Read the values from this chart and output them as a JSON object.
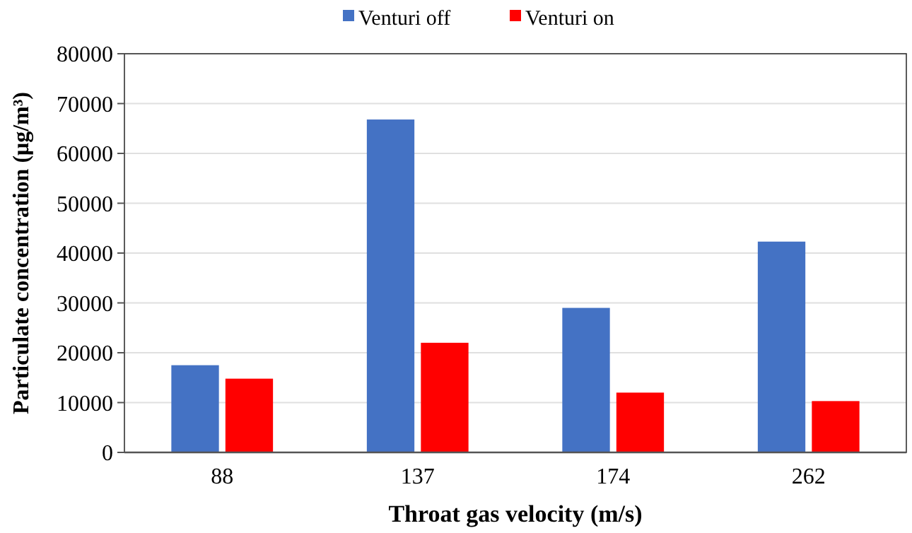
{
  "chart_data": {
    "type": "bar",
    "xlabel": "Throat gas velocity (m/s)",
    "ylabel": "Particulate concentration (μg/m³)",
    "categories": [
      "88",
      "137",
      "174",
      "262"
    ],
    "series": [
      {
        "name": "Venturi off",
        "color": "#4472c4",
        "values": [
          17500,
          66800,
          29000,
          42300
        ]
      },
      {
        "name": "Venturi on",
        "color": "#ff0000",
        "values": [
          14800,
          22000,
          12000,
          10300
        ]
      }
    ],
    "ylim": [
      0,
      80000
    ],
    "yticks": [
      0,
      10000,
      20000,
      30000,
      40000,
      50000,
      60000,
      70000,
      80000
    ],
    "grid": "y",
    "legend": "top"
  }
}
